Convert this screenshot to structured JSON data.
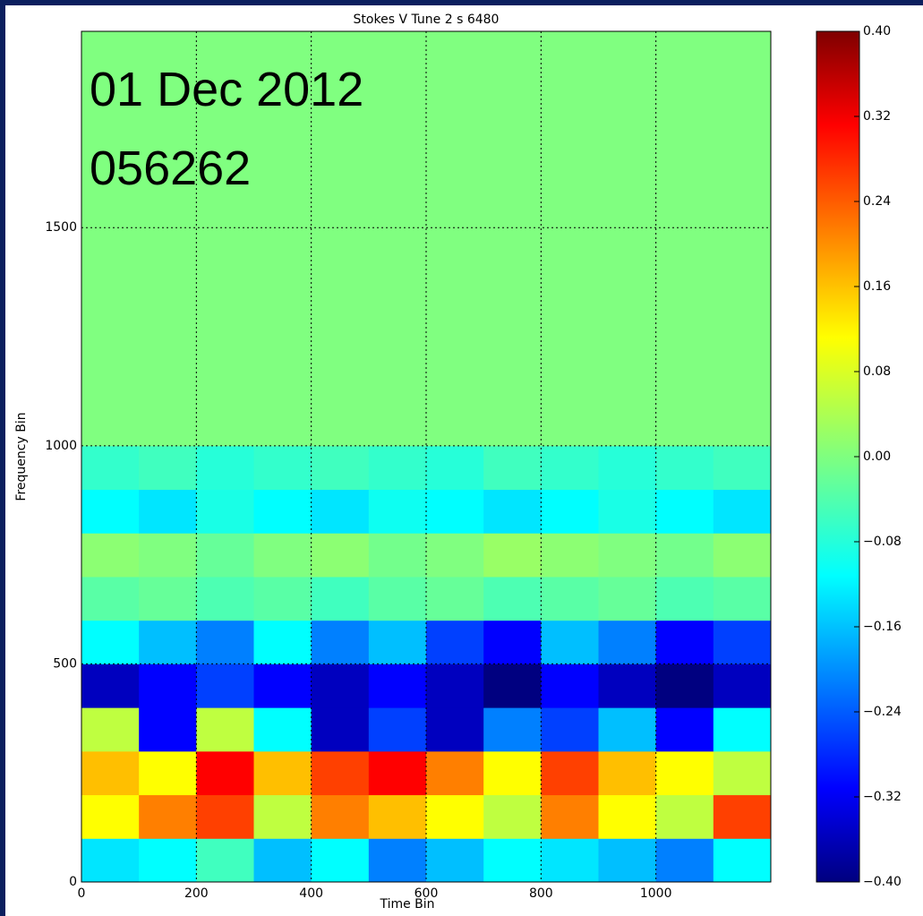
{
  "chart_data": {
    "type": "heatmap",
    "title": "Stokes V Tune 2 s 6480",
    "annotations": [
      "01 Dec 2012",
      "056262"
    ],
    "x_label": "Time Bin",
    "y_label": "Frequency Bin",
    "xlim": [
      0,
      1200
    ],
    "ylim": [
      0,
      1950
    ],
    "xticks": [
      0,
      200,
      400,
      600,
      800,
      1000
    ],
    "yticks": [
      0,
      500,
      1000,
      1500
    ],
    "grid": true,
    "colormap": "jet",
    "clim": [
      -0.4,
      0.4
    ],
    "cticks": [
      {
        "value": 0.4,
        "label": "0.40"
      },
      {
        "value": 0.32,
        "label": "0.32"
      },
      {
        "value": 0.24,
        "label": "0.24"
      },
      {
        "value": 0.16,
        "label": "0.16"
      },
      {
        "value": 0.08,
        "label": "0.08"
      },
      {
        "value": 0,
        "label": "0.00"
      },
      {
        "value": -0.08,
        "label": "−0.08"
      },
      {
        "value": -0.16,
        "label": "−0.16"
      },
      {
        "value": -0.24,
        "label": "−0.24"
      },
      {
        "value": -0.32,
        "label": "−0.32"
      },
      {
        "value": -0.4,
        "label": "−0.40"
      }
    ],
    "xbins": [
      0,
      100,
      200,
      300,
      400,
      500,
      600,
      700,
      800,
      900,
      1000,
      1100,
      1200
    ],
    "ybins": [
      0,
      100,
      200,
      300,
      400,
      500,
      600,
      700,
      800,
      900,
      1000,
      1100,
      1200,
      1300,
      1400,
      1500,
      1600,
      1700,
      1800,
      1950
    ],
    "z": [
      [
        -0.12,
        -0.1,
        -0.05,
        -0.15,
        -0.1,
        -0.2,
        -0.15,
        -0.1,
        -0.12,
        -0.15,
        -0.2,
        -0.1
      ],
      [
        0.1,
        0.2,
        0.25,
        0.05,
        0.2,
        0.15,
        0.1,
        0.05,
        0.2,
        0.1,
        0.05,
        0.25
      ],
      [
        0.15,
        0.1,
        0.3,
        0.15,
        0.25,
        0.3,
        0.2,
        0.1,
        0.25,
        0.15,
        0.1,
        0.05
      ],
      [
        0.05,
        -0.3,
        0.05,
        -0.1,
        -0.35,
        -0.25,
        -0.35,
        -0.2,
        -0.25,
        -0.15,
        -0.3,
        -0.1
      ],
      [
        -0.35,
        -0.3,
        -0.25,
        -0.3,
        -0.35,
        -0.3,
        -0.35,
        -0.4,
        -0.3,
        -0.35,
        -0.4,
        -0.35
      ],
      [
        -0.1,
        -0.15,
        -0.2,
        -0.1,
        -0.2,
        -0.15,
        -0.25,
        -0.3,
        -0.15,
        -0.2,
        -0.3,
        -0.25
      ],
      [
        -0.03,
        -0.02,
        -0.04,
        -0.03,
        -0.05,
        -0.03,
        -0.02,
        -0.04,
        -0.03,
        -0.02,
        -0.04,
        -0.03
      ],
      [
        0.01,
        0,
        -0.02,
        0,
        0.01,
        -0.01,
        0,
        0.02,
        0.01,
        0,
        -0.01,
        0.01
      ],
      [
        -0.1,
        -0.12,
        -0.08,
        -0.1,
        -0.12,
        -0.09,
        -0.1,
        -0.12,
        -0.1,
        -0.08,
        -0.1,
        -0.12
      ],
      [
        -0.06,
        -0.05,
        -0.07,
        -0.06,
        -0.05,
        -0.06,
        -0.07,
        -0.05,
        -0.06,
        -0.07,
        -0.06,
        -0.05
      ],
      [
        0,
        0,
        0,
        0,
        0,
        0,
        0,
        0,
        0,
        0,
        0,
        0
      ],
      [
        0,
        0,
        0,
        0,
        0,
        0,
        0,
        0,
        0,
        0,
        0,
        0
      ],
      [
        0,
        0,
        0,
        0,
        0,
        0,
        0,
        0,
        0,
        0,
        0,
        0
      ],
      [
        0,
        0,
        0,
        0,
        0,
        0,
        0,
        0,
        0,
        0,
        0,
        0
      ],
      [
        0,
        0,
        0,
        0,
        0,
        0,
        0,
        0,
        0,
        0,
        0,
        0
      ],
      [
        0,
        0,
        0,
        0,
        0,
        0,
        0,
        0,
        0,
        0,
        0,
        0
      ],
      [
        0,
        0,
        0,
        0,
        0,
        0,
        0,
        0,
        0,
        0,
        0,
        0
      ],
      [
        0,
        0,
        0,
        0,
        0,
        0,
        0,
        0,
        0,
        0,
        0,
        0
      ],
      [
        0,
        0,
        0,
        0,
        0,
        0,
        0,
        0,
        0,
        0,
        0,
        0
      ]
    ]
  }
}
